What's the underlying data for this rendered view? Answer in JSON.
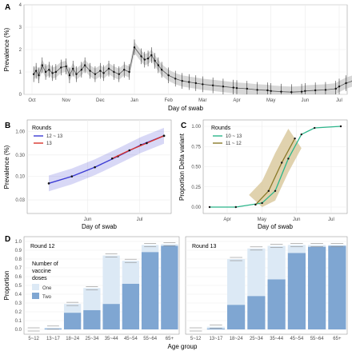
{
  "colors": {
    "grid": "#ebebeb",
    "axis": "#4d4d4d",
    "points": "#111111",
    "smooth_band": "#bdbdbd",
    "round12_13": "#3b3bd4",
    "round13": "#d9342b",
    "rounds10_13": "#2bb58a",
    "rounds11_12": "#8a7a2a",
    "band_11_12": "#d8c79a",
    "dose_one": "#dce9f5",
    "dose_two": "#7fa6d2"
  },
  "panels": [
    {
      "letter": "A",
      "chart_data": {
        "type": "scatter",
        "xlabel": "Day of swab",
        "ylabel": "Prevalence (%)",
        "x_ticks": [
          "Oct",
          "Nov",
          "Dec",
          "Jan",
          "Feb",
          "Mar",
          "Apr",
          "May",
          "Jun",
          "Jul"
        ],
        "y_ticks": [
          "0",
          "1",
          "2",
          "3",
          "4"
        ],
        "ylim": [
          0,
          4
        ],
        "points": [
          [
            0.05,
            0.9
          ],
          [
            0.12,
            1.05
          ],
          [
            0.2,
            0.85
          ],
          [
            0.3,
            1.3
          ],
          [
            0.4,
            1.0
          ],
          [
            0.5,
            1.1
          ],
          [
            0.6,
            0.95
          ],
          [
            0.7,
            1.0
          ],
          [
            0.85,
            1.2
          ],
          [
            1.0,
            1.25
          ],
          [
            1.1,
            0.85
          ],
          [
            1.2,
            1.15
          ],
          [
            1.3,
            0.9
          ],
          [
            1.45,
            1.1
          ],
          [
            1.55,
            1.3
          ],
          [
            1.7,
            1.05
          ],
          [
            1.85,
            0.9
          ],
          [
            2.0,
            1.05
          ],
          [
            2.1,
            0.95
          ],
          [
            2.25,
            1.15
          ],
          [
            2.4,
            1.0
          ],
          [
            2.55,
            0.9
          ],
          [
            2.7,
            1.1
          ],
          [
            2.85,
            1.0
          ],
          [
            3.0,
            2.1
          ],
          [
            3.2,
            1.7
          ],
          [
            3.3,
            1.55
          ],
          [
            3.4,
            1.6
          ],
          [
            3.5,
            1.75
          ],
          [
            3.6,
            1.5
          ],
          [
            3.7,
            1.3
          ],
          [
            3.8,
            1.1
          ],
          [
            4.0,
            0.85
          ],
          [
            4.2,
            0.7
          ],
          [
            4.4,
            0.6
          ],
          [
            4.6,
            0.55
          ],
          [
            4.8,
            0.5
          ],
          [
            5.0,
            0.45
          ],
          [
            5.3,
            0.4
          ],
          [
            5.6,
            0.35
          ],
          [
            5.9,
            0.3
          ],
          [
            6.0,
            0.28
          ],
          [
            6.3,
            0.25
          ],
          [
            6.6,
            0.2
          ],
          [
            6.9,
            0.18
          ],
          [
            7.0,
            0.15
          ],
          [
            7.3,
            0.12
          ],
          [
            7.6,
            0.1
          ],
          [
            7.9,
            0.12
          ],
          [
            8.0,
            0.15
          ],
          [
            8.3,
            0.18
          ],
          [
            8.6,
            0.2
          ],
          [
            8.9,
            0.25
          ],
          [
            9.0,
            0.35
          ],
          [
            9.2,
            0.5
          ],
          [
            9.4,
            0.6
          ],
          [
            9.6,
            0.7
          ],
          [
            9.8,
            0.8
          ]
        ]
      }
    },
    {
      "letter": "B",
      "chart_data": {
        "type": "scatter",
        "xlabel": "Day of swab",
        "ylabel": "Prevalence (%)",
        "y_scale": "log",
        "y_ticks": [
          "0.03",
          "0.10",
          "0.30",
          "1.00"
        ],
        "x_ticks": [
          "Jun",
          "Jul"
        ],
        "legend_title": "Rounds",
        "series": [
          {
            "name": "12 ~ 13",
            "x": [
              0,
              0.2,
              0.4,
              0.6,
              0.8,
              1.0
            ],
            "y": [
              0.07,
              0.1,
              0.16,
              0.28,
              0.5,
              0.8
            ]
          },
          {
            "name": "13",
            "x": [
              0.55,
              0.7,
              0.85,
              1.0
            ],
            "y": [
              0.25,
              0.38,
              0.55,
              0.8
            ]
          }
        ]
      }
    },
    {
      "letter": "C",
      "chart_data": {
        "type": "line",
        "xlabel": "Day of swab",
        "ylabel": "Proportion Delta variant",
        "y_ticks": [
          "0.00",
          "0.25",
          "0.50",
          "0.75",
          "1.00"
        ],
        "x_ticks": [
          "Apr",
          "May",
          "Jun",
          "Jul"
        ],
        "ylim": [
          0,
          1
        ],
        "legend_title": "Rounds",
        "series": [
          {
            "name": "10 ~ 13",
            "x": [
              0,
              0.2,
              0.4,
              0.5,
              0.6,
              0.7,
              0.8,
              1.0
            ],
            "y": [
              0.0,
              0.0,
              0.05,
              0.2,
              0.6,
              0.9,
              0.98,
              1.0
            ]
          },
          {
            "name": "11 ~ 12",
            "x": [
              0.35,
              0.45,
              0.55,
              0.65
            ],
            "y": [
              0.03,
              0.2,
              0.55,
              0.85
            ]
          }
        ]
      }
    },
    {
      "letter": "D",
      "chart_data": {
        "type": "bar",
        "xlabel": "Age group",
        "ylabel": "Proportion",
        "ylim": [
          0,
          1
        ],
        "y_ticks": [
          "0.0",
          "0.1",
          "0.2",
          "0.3",
          "0.4",
          "0.5",
          "0.6",
          "0.7",
          "0.8",
          "0.9",
          "1.0"
        ],
        "legend_title": "Number of vaccine doses",
        "legend_lines": [
          "Number of",
          "vaccine",
          "doses"
        ],
        "legend_items": [
          "One",
          "Two"
        ],
        "categories": [
          "5~12",
          "13~17",
          "18~24",
          "25~34",
          "35~44",
          "45~54",
          "55~64",
          "65+"
        ],
        "facets": [
          {
            "strip": "Round 12",
            "one": [
              0.0,
              0.01,
              0.1,
              0.25,
              0.55,
              0.26,
              0.08,
              0.02
            ],
            "two": [
              0.0,
              0.01,
              0.19,
              0.22,
              0.29,
              0.52,
              0.88,
              0.95
            ]
          },
          {
            "strip": "Round 13",
            "one": [
              0.0,
              0.02,
              0.52,
              0.54,
              0.38,
              0.09,
              0.02,
              0.01
            ],
            "two": [
              0.0,
              0.01,
              0.28,
              0.38,
              0.57,
              0.87,
              0.94,
              0.95
            ]
          }
        ]
      }
    }
  ]
}
